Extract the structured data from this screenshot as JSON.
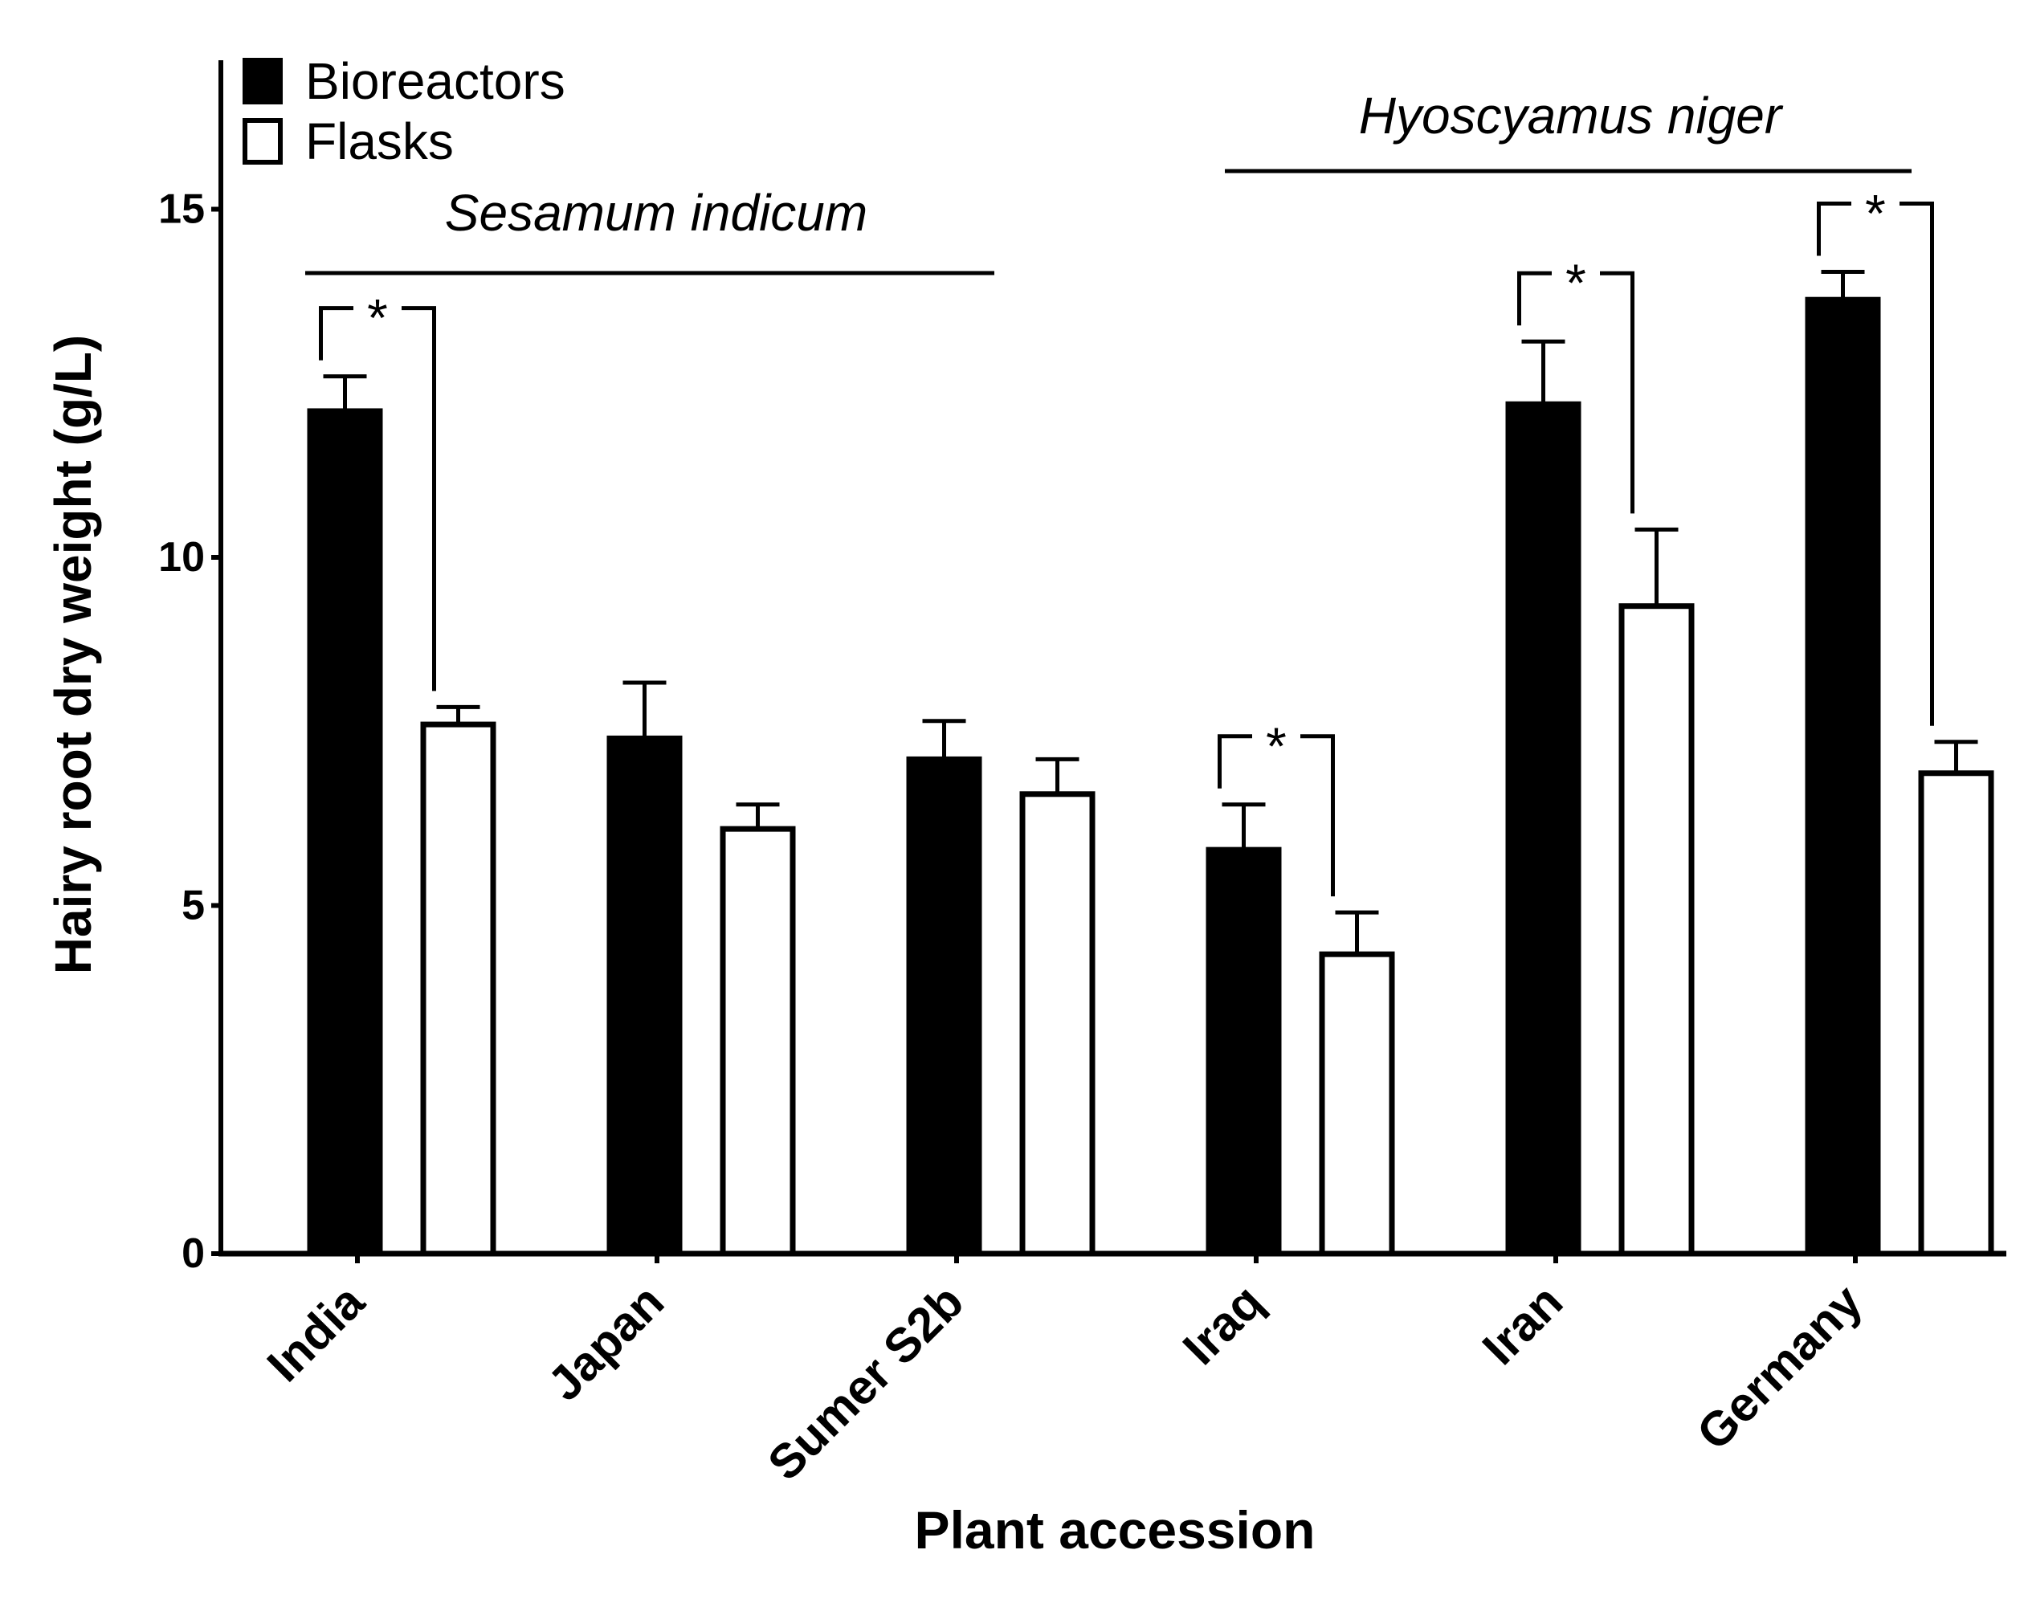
{
  "chart_data": {
    "type": "bar",
    "xlabel": "Plant accession",
    "ylabel": "Hairy root dry weight (g/L)",
    "ylim": [
      0,
      17
    ],
    "yticks": [
      0,
      5,
      10,
      15
    ],
    "categories": [
      "India",
      "Japan",
      "Sumer S2b",
      "Iraq",
      "Iran",
      "Germany"
    ],
    "series": [
      {
        "name": "Bioreactors",
        "fill": "#000000",
        "values": [
          12.1,
          7.4,
          7.1,
          5.8,
          12.2,
          13.7
        ],
        "errors": [
          0.5,
          0.8,
          0.55,
          0.65,
          0.9,
          0.4
        ]
      },
      {
        "name": "Flasks",
        "fill": "#ffffff",
        "values": [
          7.6,
          6.1,
          6.6,
          4.3,
          9.3,
          6.9
        ],
        "errors": [
          0.25,
          0.35,
          0.5,
          0.6,
          1.1,
          0.45
        ]
      }
    ],
    "groups": [
      {
        "label": "Sesamum indicum",
        "categories": [
          "India",
          "Japan",
          "Sumer S2b"
        ]
      },
      {
        "label": "Hyoscyamus niger",
        "categories": [
          "Iraq",
          "Iran",
          "Germany"
        ]
      }
    ],
    "significance": [
      {
        "category": "India",
        "marker": "*"
      },
      {
        "category": "Iraq",
        "marker": "*"
      },
      {
        "category": "Iran",
        "marker": "*"
      },
      {
        "category": "Germany",
        "marker": "*"
      }
    ],
    "legend_position": "top-left"
  }
}
